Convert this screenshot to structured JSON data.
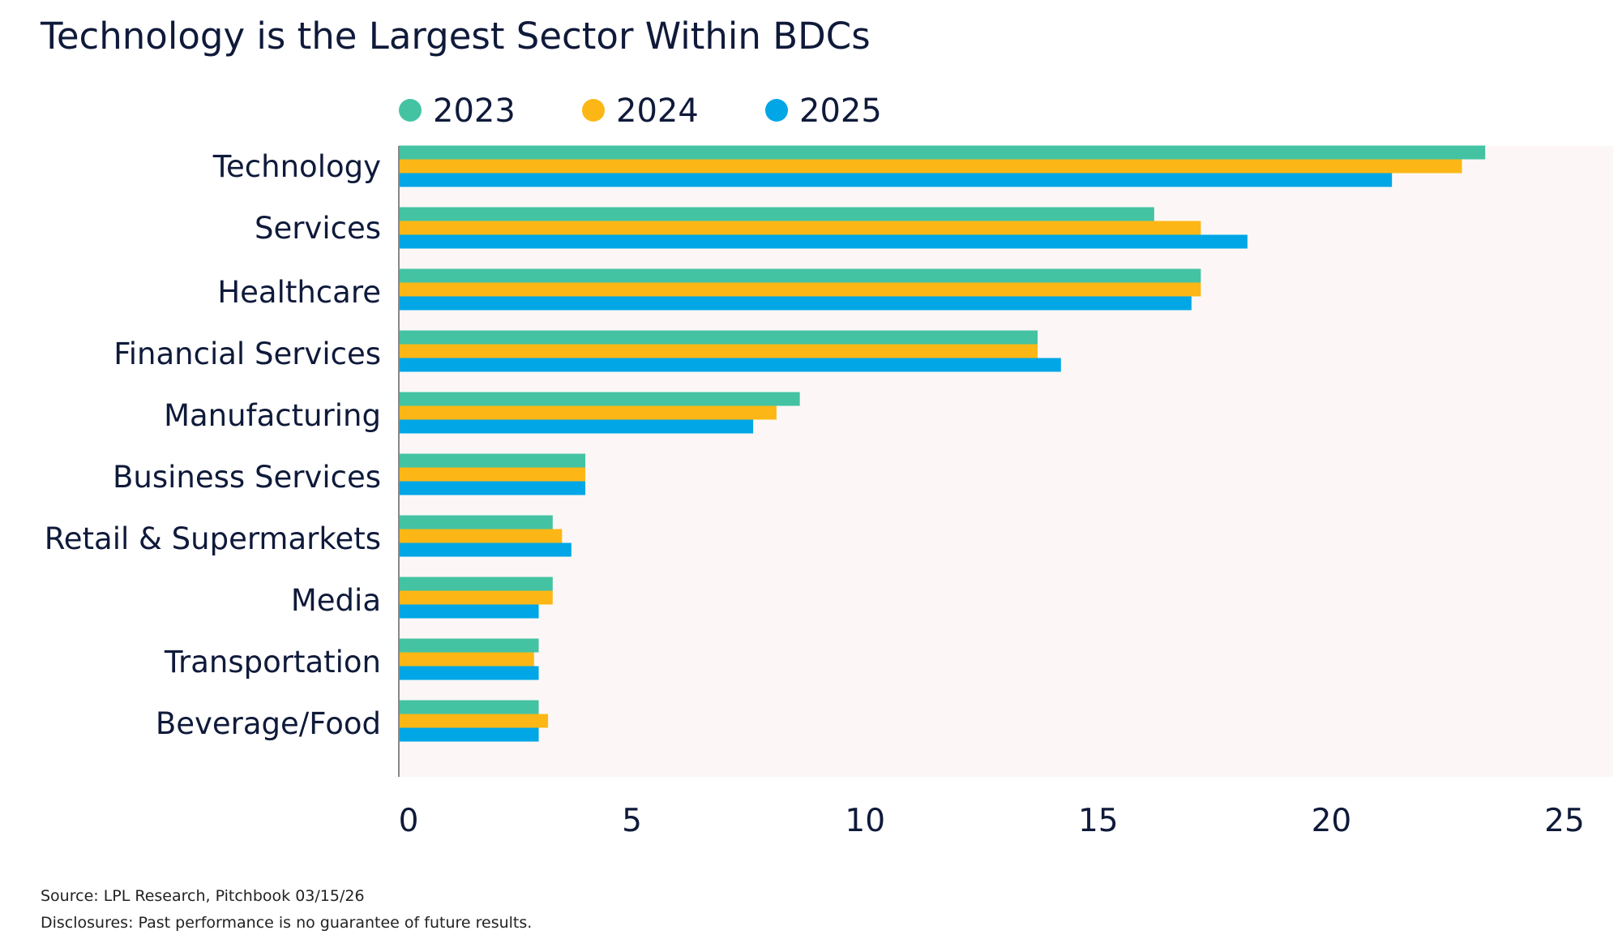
{
  "chart_data": {
    "type": "bar",
    "orientation": "horizontal",
    "title": "Technology is the Largest Sector Within BDCs",
    "xlabel": "",
    "ylabel": "",
    "xlim": [
      0,
      25
    ],
    "x_ticks": [
      "0",
      "5",
      "10",
      "15",
      "20",
      "25"
    ],
    "grid": false,
    "legend_position": "top",
    "categories": [
      "Technology",
      "Services",
      "Healthcare",
      "Financial Services",
      "Manufacturing",
      "Business Services",
      "Retail & Supermarkets",
      "Media",
      "Transportation",
      "Beverage/Food"
    ],
    "series": [
      {
        "name": "2023",
        "color": "#44c3a3",
        "values": [
          23.3,
          16.2,
          17.2,
          13.7,
          8.6,
          4.0,
          3.3,
          3.3,
          3.0,
          3.0
        ]
      },
      {
        "name": "2024",
        "color": "#fcb716",
        "values": [
          22.8,
          17.2,
          17.2,
          13.7,
          8.1,
          4.0,
          3.5,
          3.3,
          2.9,
          3.2
        ]
      },
      {
        "name": "2025",
        "color": "#00a6e5",
        "values": [
          21.3,
          18.2,
          17.0,
          14.2,
          7.6,
          4.0,
          3.7,
          3.0,
          3.0,
          3.0
        ]
      }
    ],
    "plot_background": "#fcf7f6"
  },
  "footer": {
    "source": "Source: LPL Research, Pitchbook 03/15/26",
    "disclosure": "Disclosures: Past performance is no guarantee of future results."
  }
}
